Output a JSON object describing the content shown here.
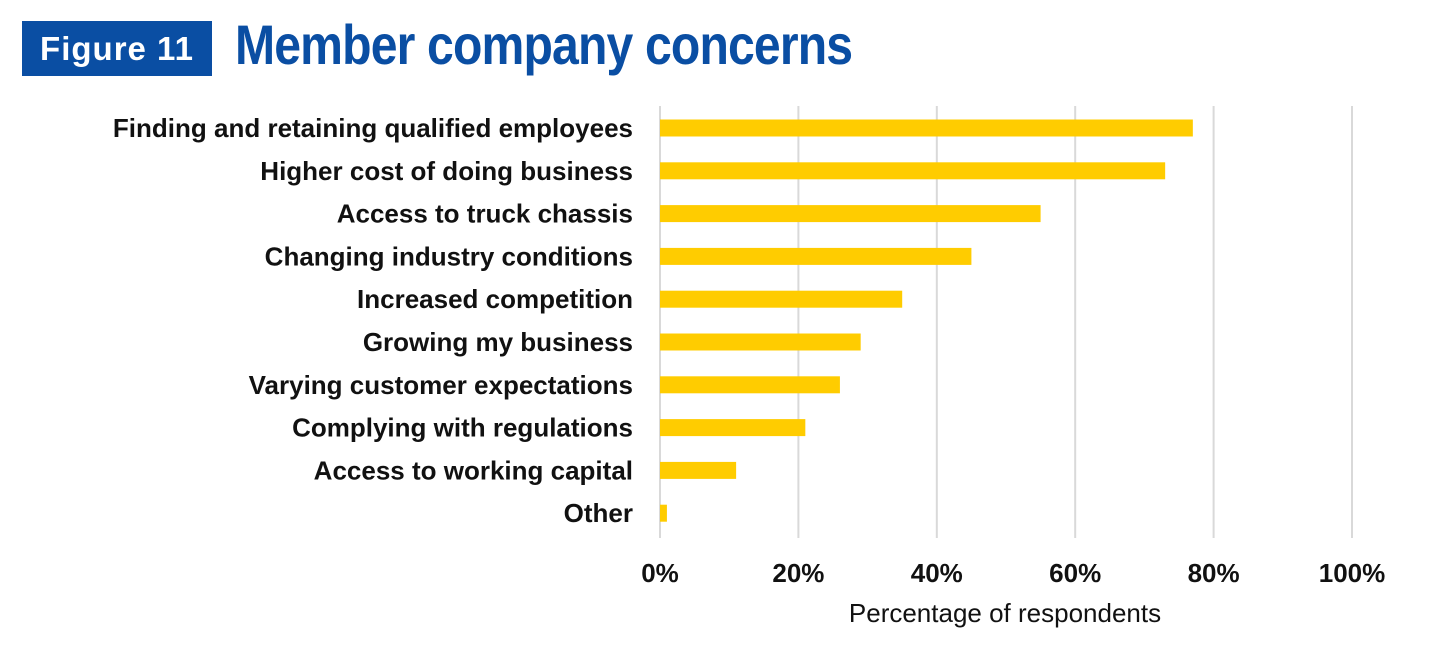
{
  "header": {
    "badge": "Figure 11"
  },
  "colors": {
    "bar": "#ffcc00",
    "brand_blue": "#0a4ea3",
    "grid": "#d9d9d9"
  },
  "chart_data": {
    "type": "bar",
    "orientation": "horizontal",
    "title": "Member company concerns",
    "xlabel": "Percentage of respondents",
    "ylabel": "",
    "xlim": [
      0,
      100
    ],
    "x_ticks": [
      "0%",
      "20%",
      "40%",
      "60%",
      "80%",
      "100%"
    ],
    "grid": "vertical",
    "legend": "none",
    "categories": [
      "Finding and retaining qualified employees",
      "Higher cost of doing business",
      "Access to truck chassis",
      "Changing industry conditions",
      "Increased competition",
      "Growing my business",
      "Varying customer expectations",
      "Complying with regulations",
      "Access to working capital",
      "Other"
    ],
    "values": [
      77,
      73,
      55,
      45,
      35,
      29,
      26,
      21,
      11,
      1
    ]
  }
}
